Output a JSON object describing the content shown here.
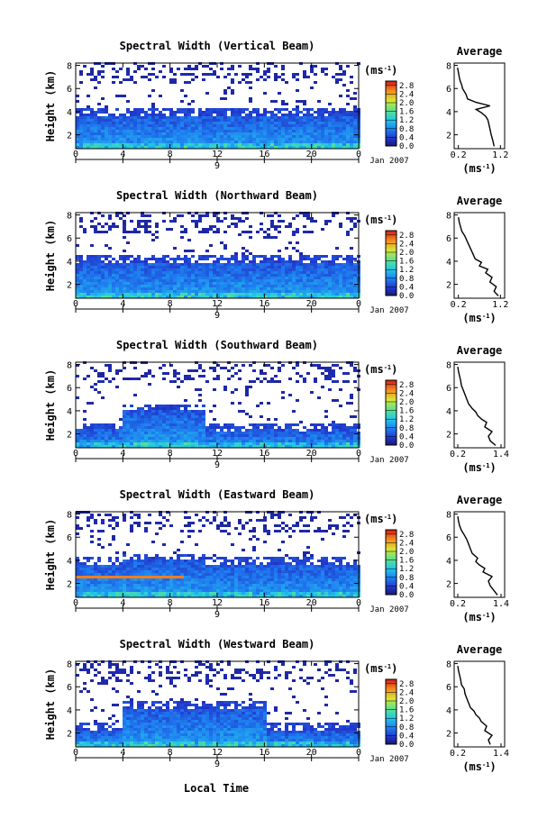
{
  "figure": {
    "xlabel": "Local Time",
    "date_label": "Jan 2007",
    "unit_label": "(ms",
    "unit_sup": "-1",
    "unit_close": ")"
  },
  "chart_data": [
    {
      "type": "heatmap",
      "title": "Spectral Width (Vertical Beam)",
      "ylabel": "Height (km)",
      "xlabel": "",
      "x_ticks": [
        "0",
        "4",
        "8",
        "12",
        "16",
        "20",
        "0"
      ],
      "x_range": [
        0,
        24
      ],
      "day_label": "9",
      "y_ticks": [
        "2",
        "4",
        "6",
        "8"
      ],
      "y_range": [
        0.8,
        8.2
      ],
      "colorbar": {
        "ticks": [
          "0.0",
          "0.4",
          "0.8",
          "1.2",
          "1.6",
          "2.0",
          "2.4",
          "2.8"
        ],
        "range": [
          0.0,
          3.0
        ]
      },
      "profile": {
        "title": "Average",
        "x_ticks": [
          "0.2",
          "1.2"
        ],
        "x_range": [
          0.1,
          1.3
        ],
        "y_ticks": [
          "2",
          "4",
          "6",
          "8"
        ],
        "y_range": [
          0.8,
          8.2
        ],
        "xlabel": "(ms",
        "xlabel_sup": "-1",
        "xlabel_close": ")",
        "x": [
          1.05,
          1.02,
          0.98,
          0.95,
          0.92,
          0.9,
          0.85,
          0.75,
          0.62,
          0.95,
          0.62,
          0.42,
          0.38,
          0.3,
          0.28,
          0.24,
          0.22,
          0.2,
          0.18
        ],
        "y": [
          1.0,
          1.5,
          2.0,
          2.5,
          3.0,
          3.3,
          3.6,
          3.9,
          4.2,
          4.5,
          4.8,
          5.1,
          5.5,
          6.0,
          6.3,
          6.7,
          7.0,
          7.4,
          7.8
        ]
      }
    },
    {
      "type": "heatmap",
      "title": "Spectral Width (Northward Beam)",
      "ylabel": "Height (km)",
      "xlabel": "",
      "x_ticks": [
        "0",
        "4",
        "8",
        "12",
        "16",
        "20",
        "0"
      ],
      "x_range": [
        0,
        24
      ],
      "day_label": "9",
      "y_ticks": [
        "2",
        "4",
        "6",
        "8"
      ],
      "y_range": [
        0.8,
        8.2
      ],
      "colorbar": {
        "ticks": [
          "0.0",
          "0.4",
          "0.8",
          "1.2",
          "1.6",
          "2.0",
          "2.4",
          "2.8"
        ],
        "range": [
          0.0,
          3.0
        ]
      },
      "profile": {
        "title": "Average",
        "x_ticks": [
          "0.2",
          "1.2"
        ],
        "x_range": [
          0.1,
          1.3
        ],
        "y_ticks": [
          "2",
          "4",
          "6",
          "8"
        ],
        "y_range": [
          0.8,
          8.2
        ],
        "xlabel": "(ms",
        "xlabel_sup": "-1",
        "xlabel_close": ")",
        "x": [
          1.15,
          1.05,
          1.1,
          0.95,
          1.0,
          0.85,
          0.9,
          0.7,
          0.75,
          0.6,
          0.55,
          0.5,
          0.45,
          0.4,
          0.35,
          0.28,
          0.25,
          0.22,
          0.2
        ],
        "y": [
          1.0,
          1.4,
          1.8,
          2.2,
          2.6,
          3.0,
          3.3,
          3.6,
          3.9,
          4.2,
          4.6,
          5.0,
          5.4,
          5.8,
          6.2,
          6.6,
          7.0,
          7.4,
          7.8
        ]
      }
    },
    {
      "type": "heatmap",
      "title": "Spectral Width (Southward Beam)",
      "ylabel": "Height (km)",
      "xlabel": "",
      "x_ticks": [
        "0",
        "4",
        "8",
        "12",
        "16",
        "20",
        "0"
      ],
      "x_range": [
        0,
        24
      ],
      "day_label": "9",
      "y_ticks": [
        "2",
        "4",
        "6",
        "8"
      ],
      "y_range": [
        0.8,
        8.2
      ],
      "colorbar": {
        "ticks": [
          "0.0",
          "0.4",
          "0.8",
          "1.2",
          "1.6",
          "2.0",
          "2.4",
          "2.8"
        ],
        "range": [
          0.0,
          3.0
        ]
      },
      "profile": {
        "title": "Average",
        "x_ticks": [
          "0.2",
          "1.4"
        ],
        "x_range": [
          0.1,
          1.5
        ],
        "y_ticks": [
          "2",
          "4",
          "6",
          "8"
        ],
        "y_range": [
          0.8,
          8.2
        ],
        "xlabel": "(ms",
        "xlabel_sup": "-1",
        "xlabel_close": ")",
        "x": [
          1.25,
          1.1,
          1.05,
          1.15,
          0.95,
          1.0,
          0.85,
          0.75,
          0.7,
          0.6,
          0.5,
          0.45,
          0.4,
          0.35,
          0.3,
          0.28,
          0.25,
          0.22,
          0.2
        ],
        "y": [
          1.0,
          1.4,
          1.8,
          2.2,
          2.6,
          3.0,
          3.3,
          3.6,
          3.9,
          4.2,
          4.6,
          5.0,
          5.4,
          5.8,
          6.2,
          6.6,
          7.0,
          7.4,
          7.8
        ]
      }
    },
    {
      "type": "heatmap",
      "title": "Spectral Width (Eastward Beam)",
      "ylabel": "Height (km)",
      "xlabel": "",
      "x_ticks": [
        "0",
        "4",
        "8",
        "12",
        "16",
        "20",
        "0"
      ],
      "x_range": [
        0,
        24
      ],
      "day_label": "9",
      "y_ticks": [
        "2",
        "4",
        "6",
        "8"
      ],
      "y_range": [
        0.8,
        8.2
      ],
      "colorbar": {
        "ticks": [
          "0.0",
          "0.4",
          "0.8",
          "1.2",
          "1.6",
          "2.0",
          "2.4",
          "2.8"
        ],
        "range": [
          0.0,
          3.0
        ]
      },
      "profile": {
        "title": "Average",
        "x_ticks": [
          "0.2",
          "1.4"
        ],
        "x_range": [
          0.1,
          1.5
        ],
        "y_ticks": [
          "2",
          "4",
          "6",
          "8"
        ],
        "y_range": [
          0.8,
          8.2
        ],
        "xlabel": "(ms",
        "xlabel_sup": "-1",
        "xlabel_close": ")",
        "x": [
          1.3,
          1.2,
          1.1,
          1.05,
          1.15,
          0.9,
          0.95,
          0.8,
          0.7,
          0.75,
          0.6,
          0.55,
          0.5,
          0.45,
          0.38,
          0.3,
          0.25,
          0.22,
          0.2
        ],
        "y": [
          1.0,
          1.4,
          1.8,
          2.2,
          2.6,
          3.0,
          3.3,
          3.6,
          3.9,
          4.2,
          4.6,
          5.0,
          5.4,
          5.8,
          6.2,
          6.6,
          7.0,
          7.4,
          7.8
        ]
      }
    },
    {
      "type": "heatmap",
      "title": "Spectral Width (Westward Beam)",
      "ylabel": "Height (km)",
      "xlabel": "",
      "x_ticks": [
        "0",
        "4",
        "8",
        "12",
        "16",
        "20",
        "0"
      ],
      "x_range": [
        0,
        24
      ],
      "day_label": "9",
      "y_ticks": [
        "2",
        "4",
        "6",
        "8"
      ],
      "y_range": [
        0.8,
        8.2
      ],
      "colorbar": {
        "ticks": [
          "0.0",
          "0.4",
          "0.8",
          "1.2",
          "1.6",
          "2.0",
          "2.4",
          "2.8"
        ],
        "range": [
          0.0,
          3.0
        ]
      },
      "profile": {
        "title": "Average",
        "x_ticks": [
          "0.2",
          "1.4"
        ],
        "x_range": [
          0.1,
          1.5
        ],
        "y_ticks": [
          "2",
          "4",
          "6",
          "8"
        ],
        "y_range": [
          0.8,
          8.2
        ],
        "xlabel": "(ms",
        "xlabel_sup": "-1",
        "xlabel_close": ")",
        "x": [
          1.1,
          1.05,
          1.15,
          0.95,
          1.0,
          0.85,
          0.8,
          0.7,
          0.65,
          0.55,
          0.5,
          0.45,
          0.4,
          0.38,
          0.3,
          0.28,
          0.25,
          0.22,
          0.2
        ],
        "y": [
          1.0,
          1.4,
          1.8,
          2.2,
          2.6,
          3.0,
          3.3,
          3.6,
          3.9,
          4.2,
          4.6,
          5.0,
          5.4,
          5.8,
          6.2,
          6.6,
          7.0,
          7.4,
          7.8
        ]
      }
    }
  ]
}
